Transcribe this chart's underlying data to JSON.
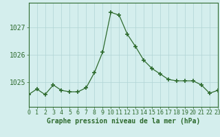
{
  "hours": [
    0,
    1,
    2,
    3,
    4,
    5,
    6,
    7,
    8,
    9,
    10,
    11,
    12,
    13,
    14,
    15,
    16,
    17,
    18,
    19,
    20,
    21,
    22,
    23
  ],
  "pressure": [
    1024.55,
    1024.75,
    1024.55,
    1024.9,
    1024.7,
    1024.65,
    1024.65,
    1024.8,
    1025.35,
    1026.1,
    1027.55,
    1027.45,
    1026.75,
    1026.3,
    1025.8,
    1025.5,
    1025.3,
    1025.1,
    1025.05,
    1025.05,
    1025.05,
    1024.9,
    1024.6,
    1024.7
  ],
  "line_color": "#2d6a2d",
  "marker": "+",
  "marker_size": 4,
  "bg_color": "#d4eeed",
  "grid_color": "#b0d4d4",
  "ylabel_ticks": [
    1025,
    1026,
    1027
  ],
  "ylim": [
    1024.1,
    1027.9
  ],
  "xlim": [
    0,
    23
  ],
  "xlabel": "Graphe pression niveau de la mer (hPa)",
  "xlabel_fontsize": 7,
  "tick_fontsize": 6,
  "spine_color": "#2d6a2d"
}
